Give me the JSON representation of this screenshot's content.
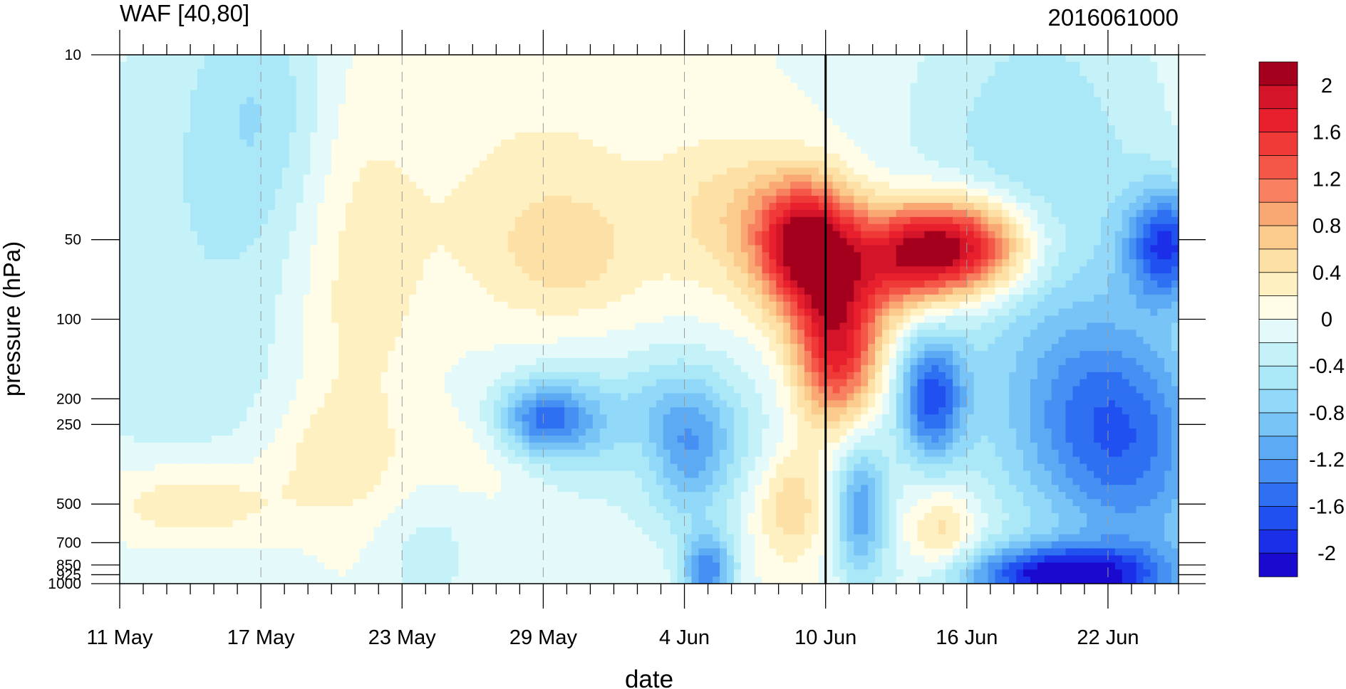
{
  "chart_data": {
    "type": "heatmap",
    "title": "WAF [40,80]",
    "subtitle": "2016061000",
    "xlabel": "date",
    "ylabel": "pressure (hPa)",
    "x_tick_labels": [
      "11 May",
      "17 May",
      "23 May",
      "29 May",
      "4 Jun",
      "10 Jun",
      "16 Jun",
      "22 Jun"
    ],
    "x_tick_dates": [
      "2016-05-11",
      "2016-05-17",
      "2016-05-23",
      "2016-05-29",
      "2016-06-04",
      "2016-06-10",
      "2016-06-16",
      "2016-06-22"
    ],
    "x_range": [
      "2016-05-11",
      "2016-06-25"
    ],
    "y_scale": "log",
    "y_reversed": true,
    "y_range": [
      1000,
      10
    ],
    "y_tick_values": [
      10,
      50,
      100,
      200,
      250,
      500,
      700,
      850,
      925,
      1000
    ],
    "y_tick_labels": [
      "10",
      "50",
      "100",
      "200",
      "250",
      "500",
      "700",
      "850",
      "925",
      "1000"
    ],
    "reference_line_date": "2016-06-10",
    "colorbar": {
      "levels": [
        -2.2,
        -2.0,
        -1.8,
        -1.6,
        -1.4,
        -1.2,
        -1.0,
        -0.8,
        -0.6,
        -0.4,
        -0.2,
        0.0,
        0.2,
        0.4,
        0.6,
        0.8,
        1.0,
        1.2,
        1.4,
        1.6,
        1.8,
        2.0,
        2.2
      ],
      "labels": [
        "2",
        "1.6",
        "1.2",
        "0.8",
        "0.4",
        "0",
        "-0.4",
        "-0.8",
        "-1.2",
        "-1.6",
        "-2"
      ],
      "label_values": [
        2,
        1.6,
        1.2,
        0.8,
        0.4,
        0,
        -0.4,
        -0.8,
        -1.2,
        -1.6,
        -2
      ],
      "colors": [
        "#1A0ACF",
        "#1C2FE8",
        "#2050F0",
        "#2F70F2",
        "#4590F2",
        "#5DAAF4",
        "#78C4F6",
        "#92D8F8",
        "#AAE8F8",
        "#C4F2F8",
        "#E4FAFA",
        "#FFFDE8",
        "#FEF0C0",
        "#FDE0A6",
        "#FACB8C",
        "#F9A873",
        "#F78060",
        "#F45748",
        "#F03A38",
        "#E8202E",
        "#D41428",
        "#A4001E"
      ]
    },
    "features": [
      {
        "kind": "positive max",
        "date": "2016-06-09",
        "pressure": 55,
        "value": 2.1
      },
      {
        "kind": "positive max",
        "date": "2016-06-16",
        "pressure": 50,
        "value": 2.1
      },
      {
        "kind": "negative min",
        "date": "2016-06-14",
        "pressure": 200,
        "value": -1.4
      },
      {
        "kind": "negative min",
        "date": "2016-05-29",
        "pressure": 250,
        "value": -1.2
      },
      {
        "kind": "negative min",
        "date": "2016-06-21",
        "pressure": 940,
        "value": -1.8
      },
      {
        "kind": "negative min",
        "date": "2016-06-24",
        "pressure": 50,
        "value": -1.4
      }
    ]
  }
}
